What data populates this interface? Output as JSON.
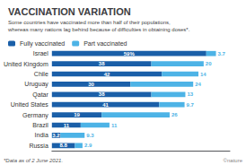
{
  "chart_data": {
    "type": "bar",
    "orientation": "horizontal",
    "stacked": true,
    "title": "VACCINATION VARIATION",
    "subtitle": "Some countries have vaccinated more than half of their populations,\nwhereas many nations lag behind because of difficulties in obtaining doses*.",
    "categories": [
      "Israel",
      "United Kingdom",
      "Chile",
      "Uruguay",
      "Qatar",
      "United States",
      "Germany",
      "Brazil",
      "India",
      "Russia"
    ],
    "series": [
      {
        "name": "Fully vaccinated",
        "color": "#1a5fa8",
        "values": [
          59,
          38,
          42,
          30,
          38,
          41,
          19,
          11,
          3.2,
          8.8
        ],
        "value_labels": [
          "59%",
          "38",
          "42",
          "30",
          "38",
          "41",
          "19",
          "11",
          "3.2",
          "8.8"
        ]
      },
      {
        "name": "Part vaccinated",
        "color": "#4db3e6",
        "values": [
          3.7,
          20,
          14,
          24,
          13,
          9.7,
          26,
          11,
          9.3,
          2.9
        ],
        "value_labels": [
          "3.7",
          "20",
          "14",
          "24",
          "13",
          "9.7",
          "26",
          "11",
          "9.3",
          "2.9"
        ]
      }
    ],
    "xlim": [
      0,
      68
    ],
    "tick_labels": "y",
    "grid": false,
    "legend": "upper left",
    "data_labels": true,
    "annotations": [
      "*Data as of 2 June 2021.",
      "©nature"
    ]
  }
}
